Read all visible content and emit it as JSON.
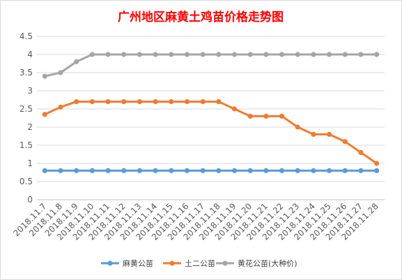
{
  "chart_data": {
    "type": "line",
    "title": "广州地区麻黄土鸡苗价格走势图",
    "title_color": "#ff0000",
    "xlabel": "",
    "ylabel": "",
    "ylim": [
      0,
      4.5
    ],
    "yticks": [
      "0",
      "0.5",
      "1",
      "1.5",
      "2",
      "2.5",
      "3",
      "3.5",
      "4",
      "4.5"
    ],
    "grid": "horizontal",
    "legend_position": "bottom",
    "categories": [
      "2018.11.7",
      "2018.11.8",
      "2018.11.9",
      "2018.11.10",
      "2018.11.11",
      "2018.11.12",
      "2018.11.13",
      "2018.11.14",
      "2018.11.15",
      "2018.11.16",
      "2018.11.17",
      "2018.11.18",
      "2018.11.19",
      "2018.11.20",
      "2018.11.21",
      "2018.11.22",
      "2018.11.23",
      "2018.11.24",
      "2018.11.25",
      "2018.11.26",
      "2018.11.27",
      "2018.11.28"
    ],
    "series": [
      {
        "name": "麻黄公苗",
        "color": "#5b9bd5",
        "values": [
          0.8,
          0.8,
          0.8,
          0.8,
          0.8,
          0.8,
          0.8,
          0.8,
          0.8,
          0.8,
          0.8,
          0.8,
          0.8,
          0.8,
          0.8,
          0.8,
          0.8,
          0.8,
          0.8,
          0.8,
          0.8,
          0.8
        ]
      },
      {
        "name": "土二公苗",
        "color": "#ed7d31",
        "values": [
          2.35,
          2.55,
          2.7,
          2.7,
          2.7,
          2.7,
          2.7,
          2.7,
          2.7,
          2.7,
          2.7,
          2.7,
          2.5,
          2.3,
          2.3,
          2.3,
          2.0,
          1.8,
          1.8,
          1.6,
          1.3,
          1.0
        ]
      },
      {
        "name": "黄花公苗(大种价)",
        "color": "#a5a5a5",
        "values": [
          3.4,
          3.5,
          3.8,
          4.0,
          4.0,
          4.0,
          4.0,
          4.0,
          4.0,
          4.0,
          4.0,
          4.0,
          4.0,
          4.0,
          4.0,
          4.0,
          4.0,
          4.0,
          4.0,
          4.0,
          4.0,
          4.0
        ]
      }
    ]
  }
}
